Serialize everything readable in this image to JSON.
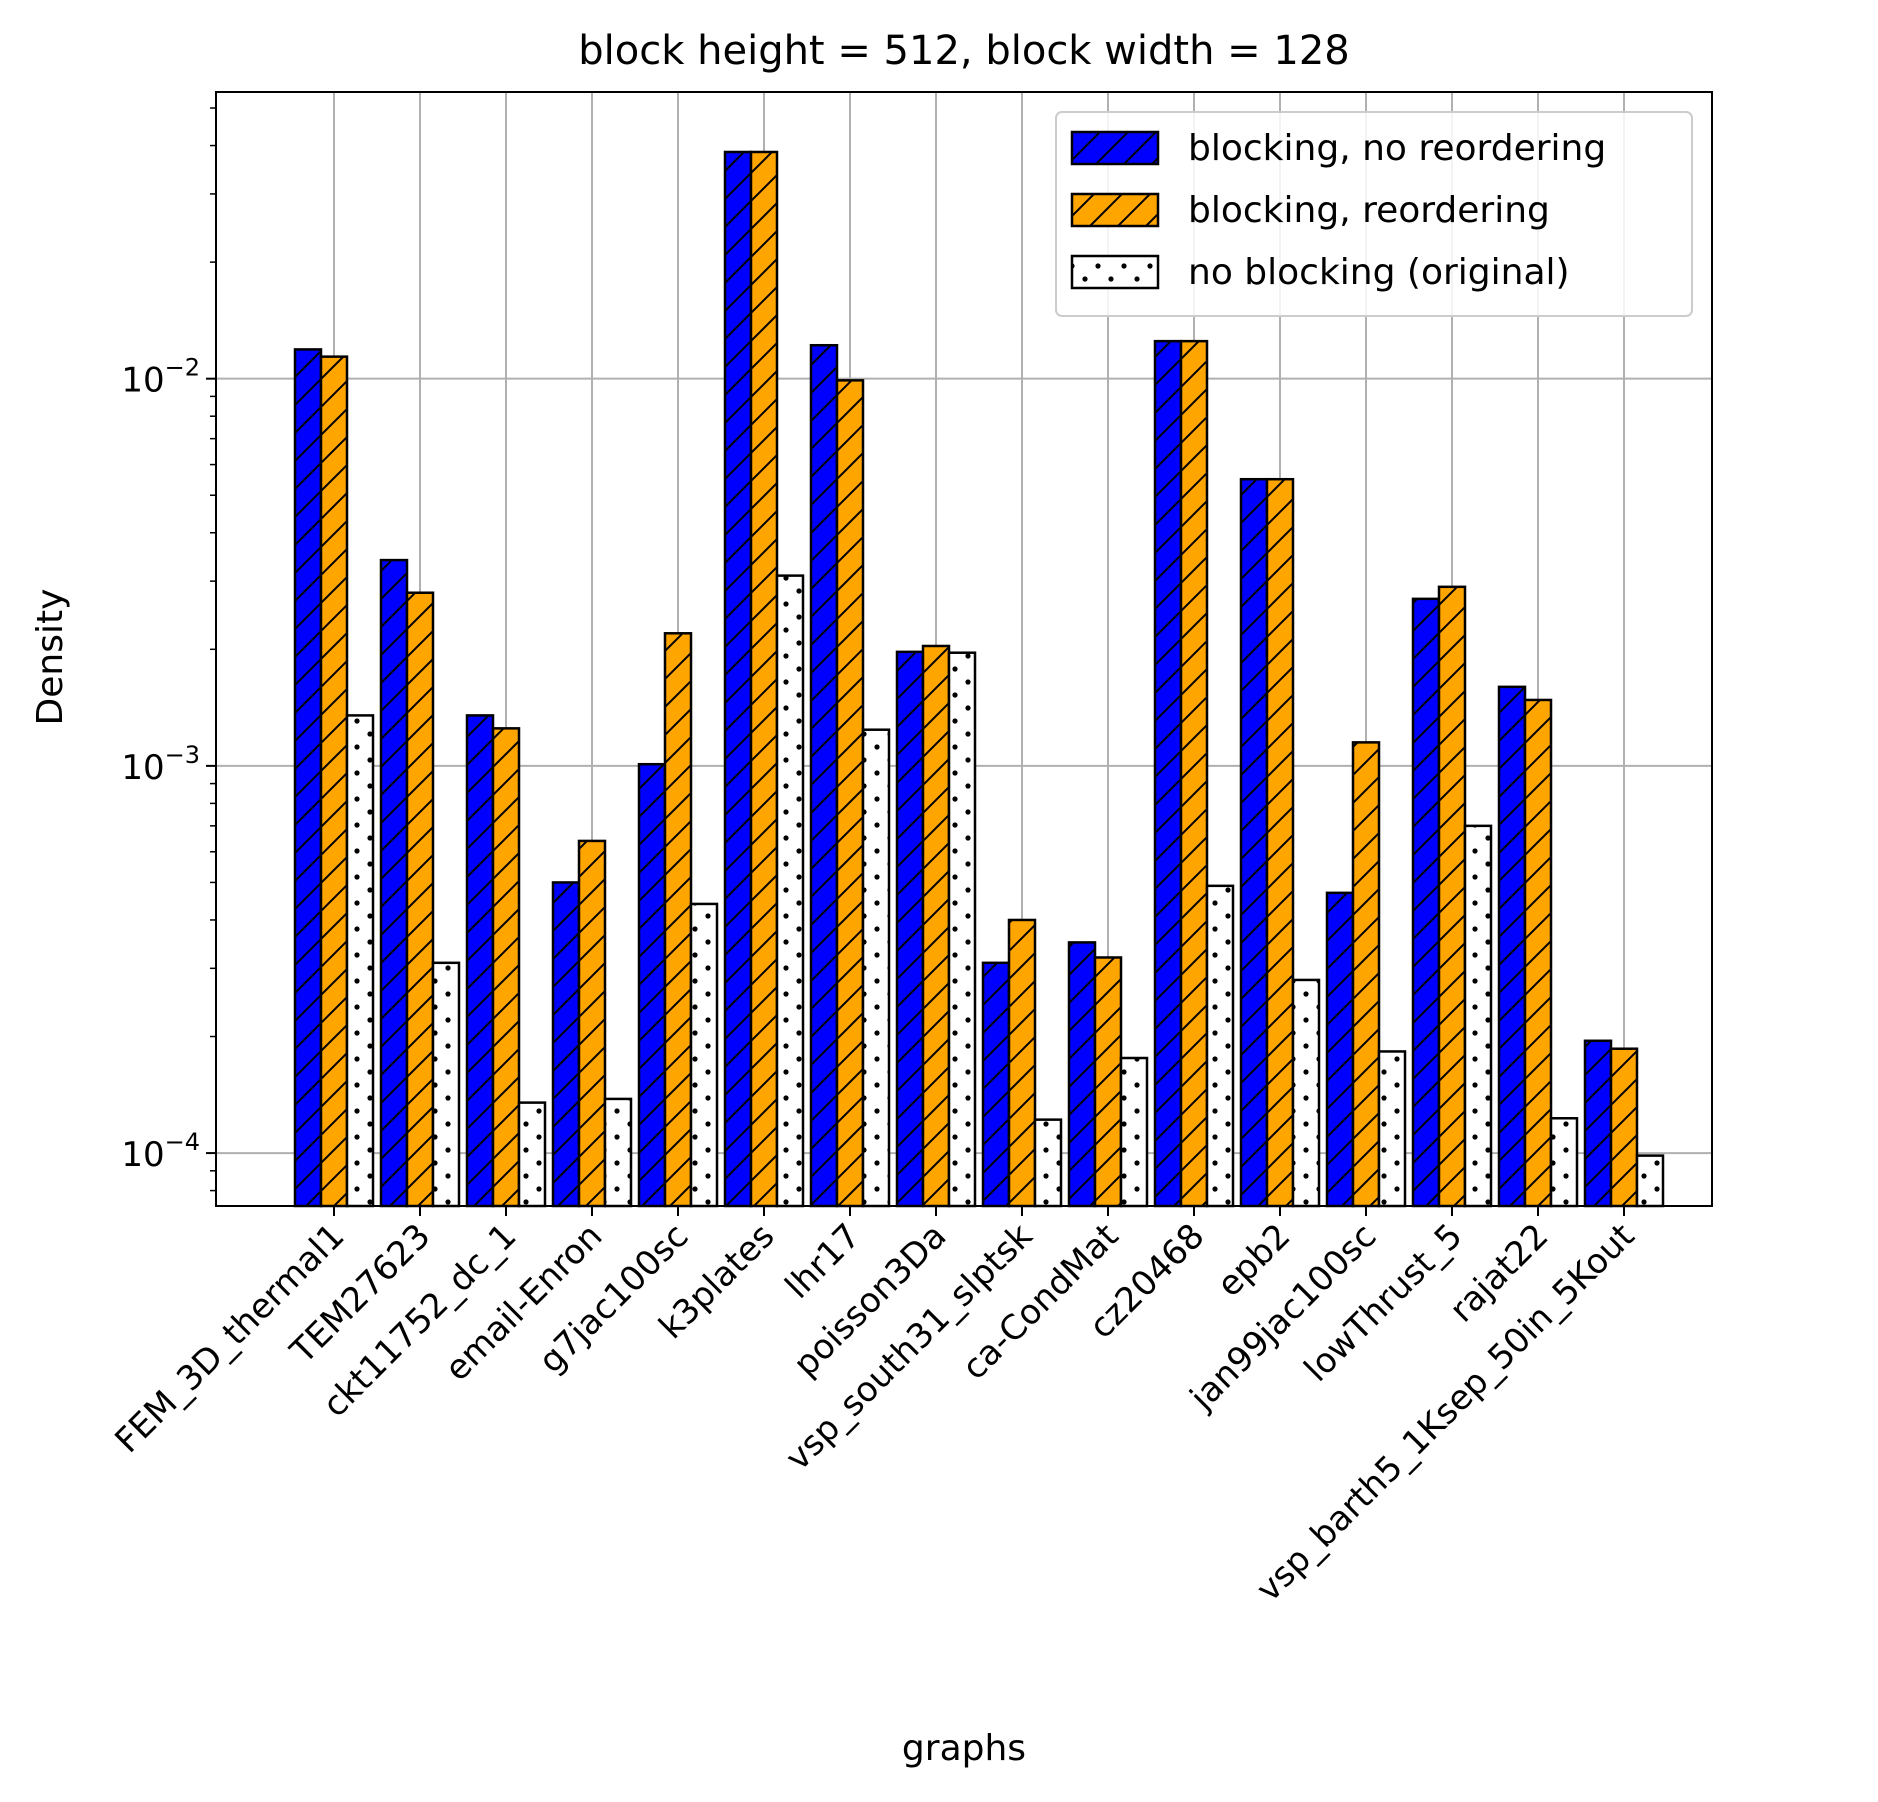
{
  "chart_data": {
    "type": "bar",
    "title": "block height = 512, block width = 128",
    "xlabel": "graphs",
    "ylabel": "Density",
    "yscale": "log",
    "ylim": [
      7.3e-05,
      0.055
    ],
    "yticks": [
      {
        "value": 0.0001,
        "base": "10",
        "exp": "−4"
      },
      {
        "value": 0.001,
        "base": "10",
        "exp": "−3"
      },
      {
        "value": 0.01,
        "base": "10",
        "exp": "−2"
      }
    ],
    "grid": true,
    "legend_position": "top-right",
    "categories": [
      "FEM_3D_thermal1",
      "TEM27623",
      "ckt11752_dc_1",
      "email-Enron",
      "g7jac100sc",
      "k3plates",
      "lhr17",
      "poisson3Da",
      "vsp_south31_slptsk",
      "ca-CondMat",
      "cz20468",
      "epb2",
      "jan99jac100sc",
      "lowThrust_5",
      "rajat22",
      "vsp_barth5_1Ksep_50in_5Kout"
    ],
    "series": [
      {
        "name": "blocking, no reordering",
        "color": "#0000ff",
        "pattern": "hatch",
        "values": [
          0.0119,
          0.0034,
          0.00135,
          0.0005,
          0.00101,
          0.0385,
          0.0122,
          0.00197,
          0.00031,
          0.00035,
          0.0125,
          0.0055,
          0.00047,
          0.0027,
          0.0016,
          0.000195
        ]
      },
      {
        "name": "blocking, reordering",
        "color": "#ffa500",
        "pattern": "hatch",
        "values": [
          0.0114,
          0.0028,
          0.00125,
          0.00064,
          0.0022,
          0.0385,
          0.0099,
          0.00204,
          0.0004,
          0.00032,
          0.0125,
          0.0055,
          0.00115,
          0.0029,
          0.00148,
          0.000186
        ]
      },
      {
        "name": "no blocking (original)",
        "color": "#ffffff",
        "pattern": "dots",
        "values": [
          0.00135,
          0.00031,
          0.000135,
          null,
          0.00044,
          0.0031,
          0.00124,
          0.00196,
          0.000122,
          0.000176,
          0.00049,
          0.00028,
          0.000183,
          0.0007,
          0.000123,
          9.85e-05
        ]
      }
    ],
    "extra_bars": [
      {
        "after_category_index": 3,
        "series_index": 2,
        "value": 0.000138
      }
    ]
  }
}
